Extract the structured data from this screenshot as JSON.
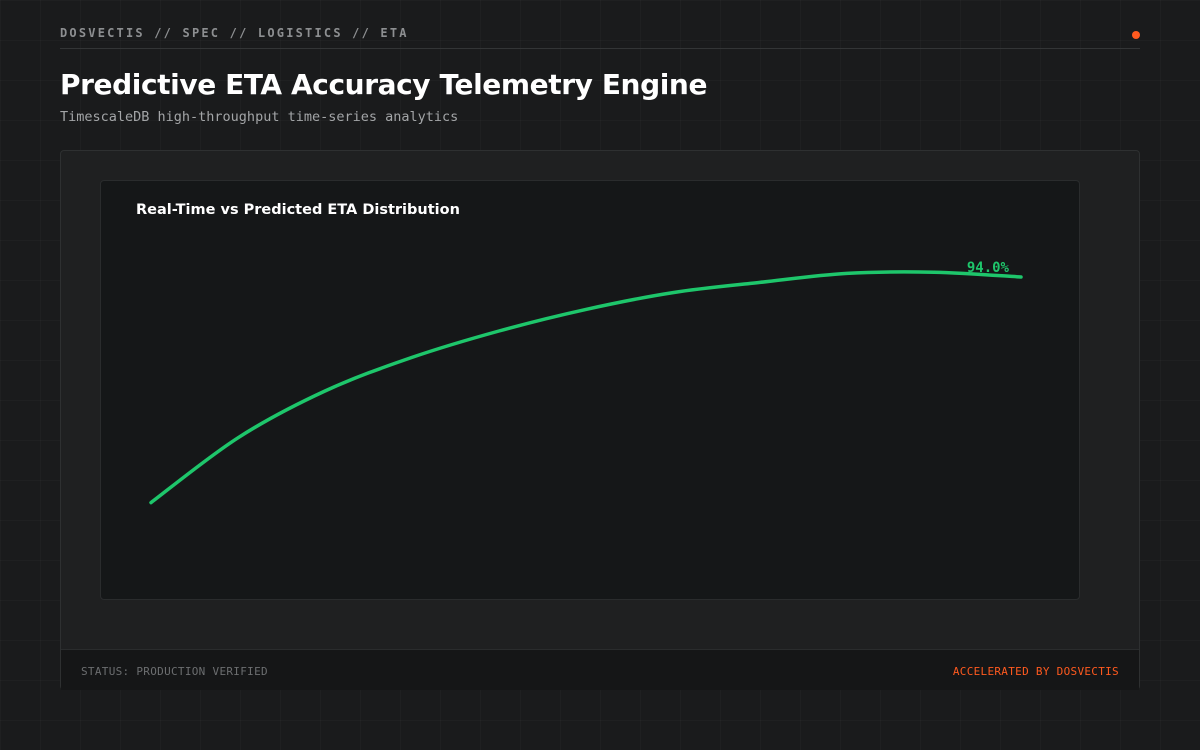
{
  "header": {
    "breadcrumb": "DOSVECTIS // SPEC // LOGISTICS // ETA",
    "title": "Predictive ETA Accuracy Telemetry Engine",
    "subtitle": "TimescaleDB high-throughput time-series analytics",
    "status_dot_color": "#ff5a1f"
  },
  "chart_data": {
    "type": "line",
    "title": "Real-Time vs Predicted ETA Distribution",
    "xlabel": "",
    "ylabel": "",
    "grid": false,
    "series": [
      {
        "color": "#1ec66b",
        "values": [
          56.4,
          67.2,
          75.0,
          80.6,
          85.0,
          88.6,
          91.4,
          93.1,
          94.6,
          94.8,
          94.0
        ],
        "end_label": "94.0%"
      }
    ],
    "ylim": [
      50,
      100
    ]
  },
  "footer": {
    "status": "STATUS: PRODUCTION VERIFIED",
    "credit": "ACCELERATED BY DOSVECTIS"
  }
}
